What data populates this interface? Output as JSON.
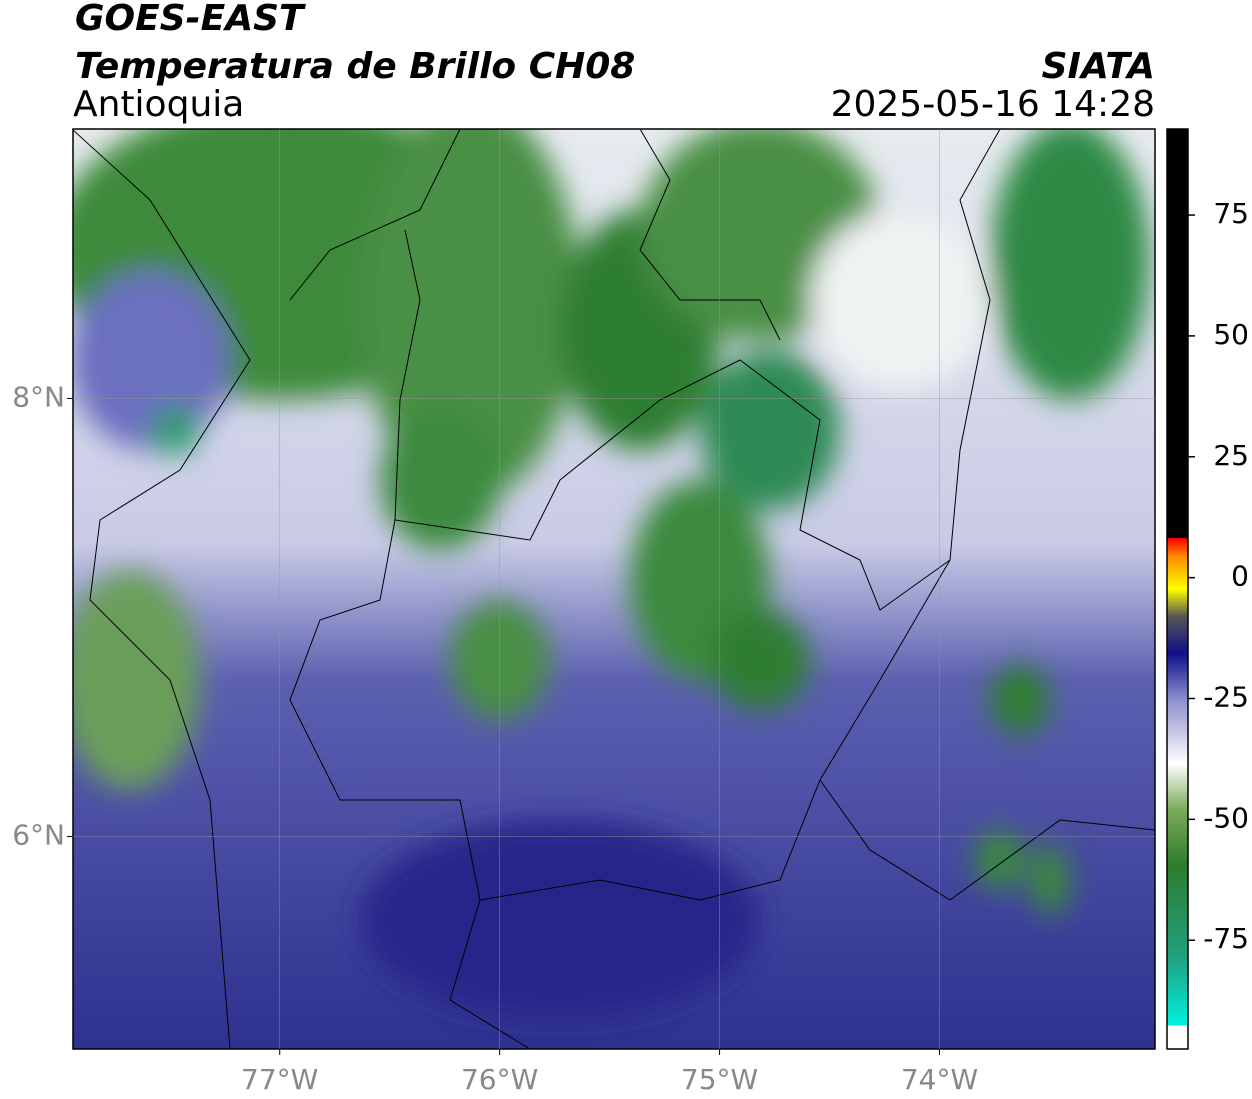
{
  "header": {
    "title": "GOES-EAST",
    "subtitle": "Temperatura de Brillo CH08",
    "region": "Antioquia",
    "source": "SIATA",
    "datetime": "2025-05-16 14:28"
  },
  "map": {
    "xlim": [
      -77.94,
      -73.02
    ],
    "ylim": [
      5.03,
      9.23
    ],
    "xticks": [
      {
        "value": -77,
        "label": "77°W"
      },
      {
        "value": -76,
        "label": "76°W"
      },
      {
        "value": -75,
        "label": "75°W"
      },
      {
        "value": -74,
        "label": "74°W"
      }
    ],
    "yticks": [
      {
        "value": 6,
        "label": "6°N"
      },
      {
        "value": 8,
        "label": "8°N"
      }
    ],
    "grid": true
  },
  "colorbar": {
    "lim": [
      -97.5,
      92.8
    ],
    "ticks": [
      -75,
      -50,
      -25,
      0,
      25,
      50,
      75
    ]
  }
}
